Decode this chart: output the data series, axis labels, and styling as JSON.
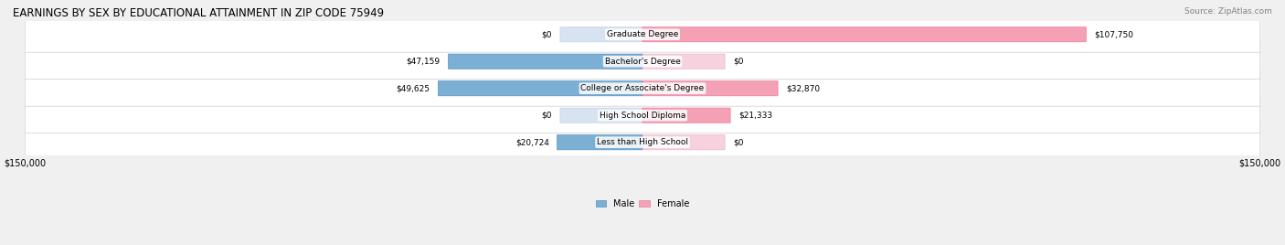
{
  "title": "EARNINGS BY SEX BY EDUCATIONAL ATTAINMENT IN ZIP CODE 75949",
  "source": "Source: ZipAtlas.com",
  "categories": [
    "Less than High School",
    "High School Diploma",
    "College or Associate's Degree",
    "Bachelor's Degree",
    "Graduate Degree"
  ],
  "male_values": [
    20724,
    0,
    49625,
    47159,
    0
  ],
  "female_values": [
    0,
    21333,
    32870,
    0,
    107750
  ],
  "male_color": "#7bafd4",
  "female_color": "#f4a0b5",
  "male_color_dark": "#5b8fbf",
  "female_color_dark": "#e87fa0",
  "max_value": 150000,
  "bg_color": "#f0f0f0",
  "row_bg": "#e8e8e8",
  "legend_male_label": "Male",
  "legend_female_label": "Female"
}
